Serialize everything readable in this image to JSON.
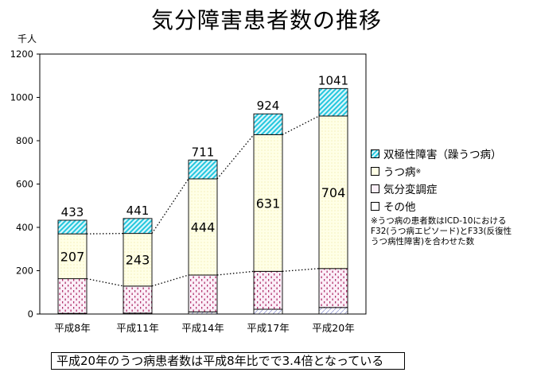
{
  "title": "気分障害患者数の推移",
  "unit_label": "千人",
  "legend": {
    "items": [
      {
        "key": "bipolar",
        "label": "双極性障害（躁うつ病）",
        "sup": ""
      },
      {
        "key": "depression",
        "label": "うつ病",
        "sup": "※"
      },
      {
        "key": "dysthymia",
        "label": "気分変調症",
        "sup": ""
      },
      {
        "key": "other",
        "label": "その他",
        "sup": ""
      }
    ],
    "note_lines": [
      "※うつ病の患者数はICD-10における",
      "F32(うつ病エピソード)とF33(反復性",
      "うつ病性障害)を合わせた数"
    ]
  },
  "conclusion": "平成20年のうつ病患者数は平成8年比でで3.4倍となっている",
  "chart_data": {
    "type": "bar",
    "stacked": true,
    "categories": [
      "平成8年",
      "平成11年",
      "平成14年",
      "平成17年",
      "平成20年"
    ],
    "series": [
      {
        "key": "other",
        "name": "その他",
        "values": [
          3,
          4,
          10,
          22,
          30
        ],
        "color": "#ffffff"
      },
      {
        "key": "dysthymia",
        "name": "気分変調症",
        "values": [
          160,
          125,
          170,
          175,
          180
        ],
        "color": "#f3dcef"
      },
      {
        "key": "depression",
        "name": "うつ病",
        "values": [
          207,
          243,
          444,
          631,
          704
        ],
        "color": "#ffffdd"
      },
      {
        "key": "bipolar",
        "name": "双極性障害（躁うつ病）",
        "values": [
          63,
          69,
          87,
          96,
          127
        ],
        "color": "#66ddee"
      }
    ],
    "totals": [
      433,
      441,
      711,
      924,
      1041
    ],
    "depression_labels": [
      "207",
      "243",
      "444",
      "631",
      "704"
    ],
    "total_labels": [
      "433",
      "441",
      "711",
      "924",
      "1041"
    ],
    "y_ticks": [
      0,
      200,
      400,
      600,
      800,
      1000,
      1200
    ],
    "ylim": [
      0,
      1200
    ],
    "connector_lines": [
      {
        "style": "dotted",
        "from": "dysthymia_top",
        "to": "dysthymia_top"
      },
      {
        "style": "dotted",
        "from": "depression_top",
        "to": "depression_top"
      }
    ],
    "grid": false,
    "legend_position": "right"
  }
}
